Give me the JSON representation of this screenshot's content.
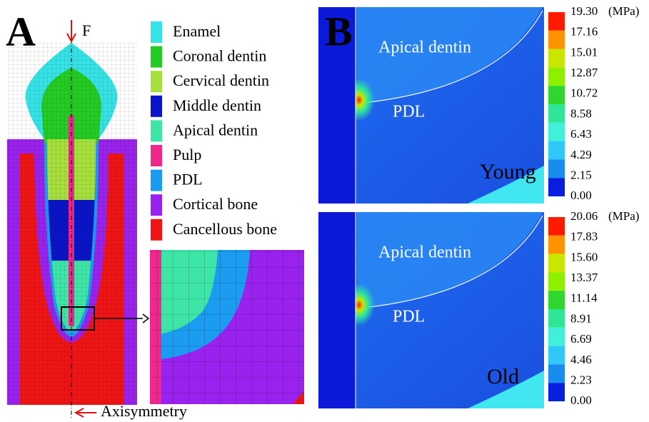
{
  "panel_a": {
    "label": "A",
    "force": "F",
    "axis_label": "Axisymmetry",
    "legend": [
      {
        "name": "Enamel",
        "color": "#33e3e6"
      },
      {
        "name": "Coronal dentin",
        "color": "#22cc22"
      },
      {
        "name": "Cervical dentin",
        "color": "#a6e03a"
      },
      {
        "name": "Middle dentin",
        "color": "#0a14c8"
      },
      {
        "name": "Apical dentin",
        "color": "#3de6a6"
      },
      {
        "name": "Pulp",
        "color": "#f0288c"
      },
      {
        "name": "PDL",
        "color": "#1a9cf0"
      },
      {
        "name": "Cortical bone",
        "color": "#9a22ee"
      },
      {
        "name": "Cancellous bone",
        "color": "#f01414"
      }
    ]
  },
  "panel_b": {
    "label": "B",
    "scale_colors": [
      "#ff1a00",
      "#ff9200",
      "#c8e600",
      "#8ef000",
      "#2ed62e",
      "#2ee696",
      "#40f0d8",
      "#30c8f8",
      "#1a8cf0",
      "#0a1ee0"
    ],
    "maps": [
      {
        "condition": "Young",
        "regions": [
          "Apical dentin",
          "PDL"
        ],
        "unit": "(MPa)",
        "scale_labels": [
          "19.30",
          "17.16",
          "15.01",
          "12.87",
          "10.72",
          "8.58",
          "6.43",
          "4.29",
          "2.15",
          "0.00"
        ]
      },
      {
        "condition": "Old",
        "regions": [
          "Apical dentin",
          "PDL"
        ],
        "unit": "(MPa)",
        "scale_labels": [
          "20.06",
          "17.83",
          "15.60",
          "13.37",
          "11.14",
          "8.91",
          "6.69",
          "4.46",
          "2.23",
          "0.00"
        ]
      }
    ]
  }
}
